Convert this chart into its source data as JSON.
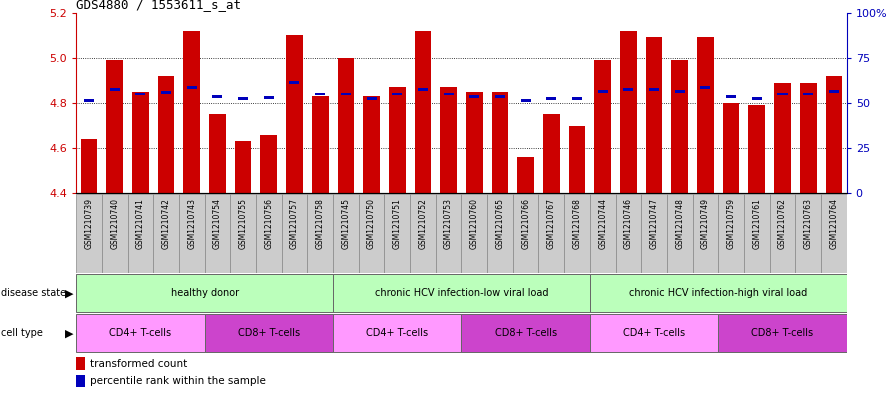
{
  "title": "GDS4880 / 1553611_s_at",
  "samples": [
    "GSM1210739",
    "GSM1210740",
    "GSM1210741",
    "GSM1210742",
    "GSM1210743",
    "GSM1210754",
    "GSM1210755",
    "GSM1210756",
    "GSM1210757",
    "GSM1210758",
    "GSM1210745",
    "GSM1210750",
    "GSM1210751",
    "GSM1210752",
    "GSM1210753",
    "GSM1210760",
    "GSM1210765",
    "GSM1210766",
    "GSM1210767",
    "GSM1210768",
    "GSM1210744",
    "GSM1210746",
    "GSM1210747",
    "GSM1210748",
    "GSM1210749",
    "GSM1210759",
    "GSM1210761",
    "GSM1210762",
    "GSM1210763",
    "GSM1210764"
  ],
  "red_values": [
    4.64,
    4.99,
    4.85,
    4.92,
    5.12,
    4.75,
    4.63,
    4.66,
    5.1,
    4.83,
    5.0,
    4.83,
    4.87,
    5.12,
    4.87,
    4.85,
    4.85,
    4.56,
    4.75,
    4.7,
    4.99,
    5.12,
    5.09,
    4.99,
    5.09,
    4.8,
    4.79,
    4.89,
    4.89,
    4.92
  ],
  "blue_values": [
    4.81,
    4.86,
    4.84,
    4.845,
    4.87,
    4.83,
    4.82,
    4.825,
    4.89,
    4.84,
    4.84,
    4.82,
    4.84,
    4.86,
    4.84,
    4.83,
    4.83,
    4.81,
    4.82,
    4.82,
    4.85,
    4.86,
    4.86,
    4.85,
    4.87,
    4.83,
    4.82,
    4.84,
    4.84,
    4.85
  ],
  "ymin": 4.4,
  "ymax": 5.2,
  "yticks": [
    4.4,
    4.6,
    4.8,
    5.0,
    5.2
  ],
  "right_ytick_pct": [
    0,
    25,
    50,
    75,
    100
  ],
  "bar_color": "#cc0000",
  "dot_color": "#0000bb",
  "bg_color": "#ffffff",
  "xtick_bg": "#cccccc",
  "disease_groups": [
    {
      "label": "healthy donor",
      "start": 0,
      "end": 9,
      "color": "#bbffbb"
    },
    {
      "label": "chronic HCV infection-low viral load",
      "start": 10,
      "end": 19,
      "color": "#bbffbb"
    },
    {
      "label": "chronic HCV infection-high viral load",
      "start": 20,
      "end": 29,
      "color": "#bbffbb"
    }
  ],
  "cell_type_groups": [
    {
      "label": "CD4+ T-cells",
      "start": 0,
      "end": 4,
      "color": "#ff99ff"
    },
    {
      "label": "CD8+ T-cells",
      "start": 5,
      "end": 9,
      "color": "#cc44cc"
    },
    {
      "label": "CD4+ T-cells",
      "start": 10,
      "end": 14,
      "color": "#ff99ff"
    },
    {
      "label": "CD8+ T-cells",
      "start": 15,
      "end": 19,
      "color": "#cc44cc"
    },
    {
      "label": "CD4+ T-cells",
      "start": 20,
      "end": 24,
      "color": "#ff99ff"
    },
    {
      "label": "CD8+ T-cells",
      "start": 25,
      "end": 29,
      "color": "#cc44cc"
    }
  ],
  "legend_items": [
    {
      "label": "transformed count",
      "color": "#cc0000",
      "marker": "s"
    },
    {
      "label": "percentile rank within the sample",
      "color": "#0000bb",
      "marker": "s"
    }
  ]
}
